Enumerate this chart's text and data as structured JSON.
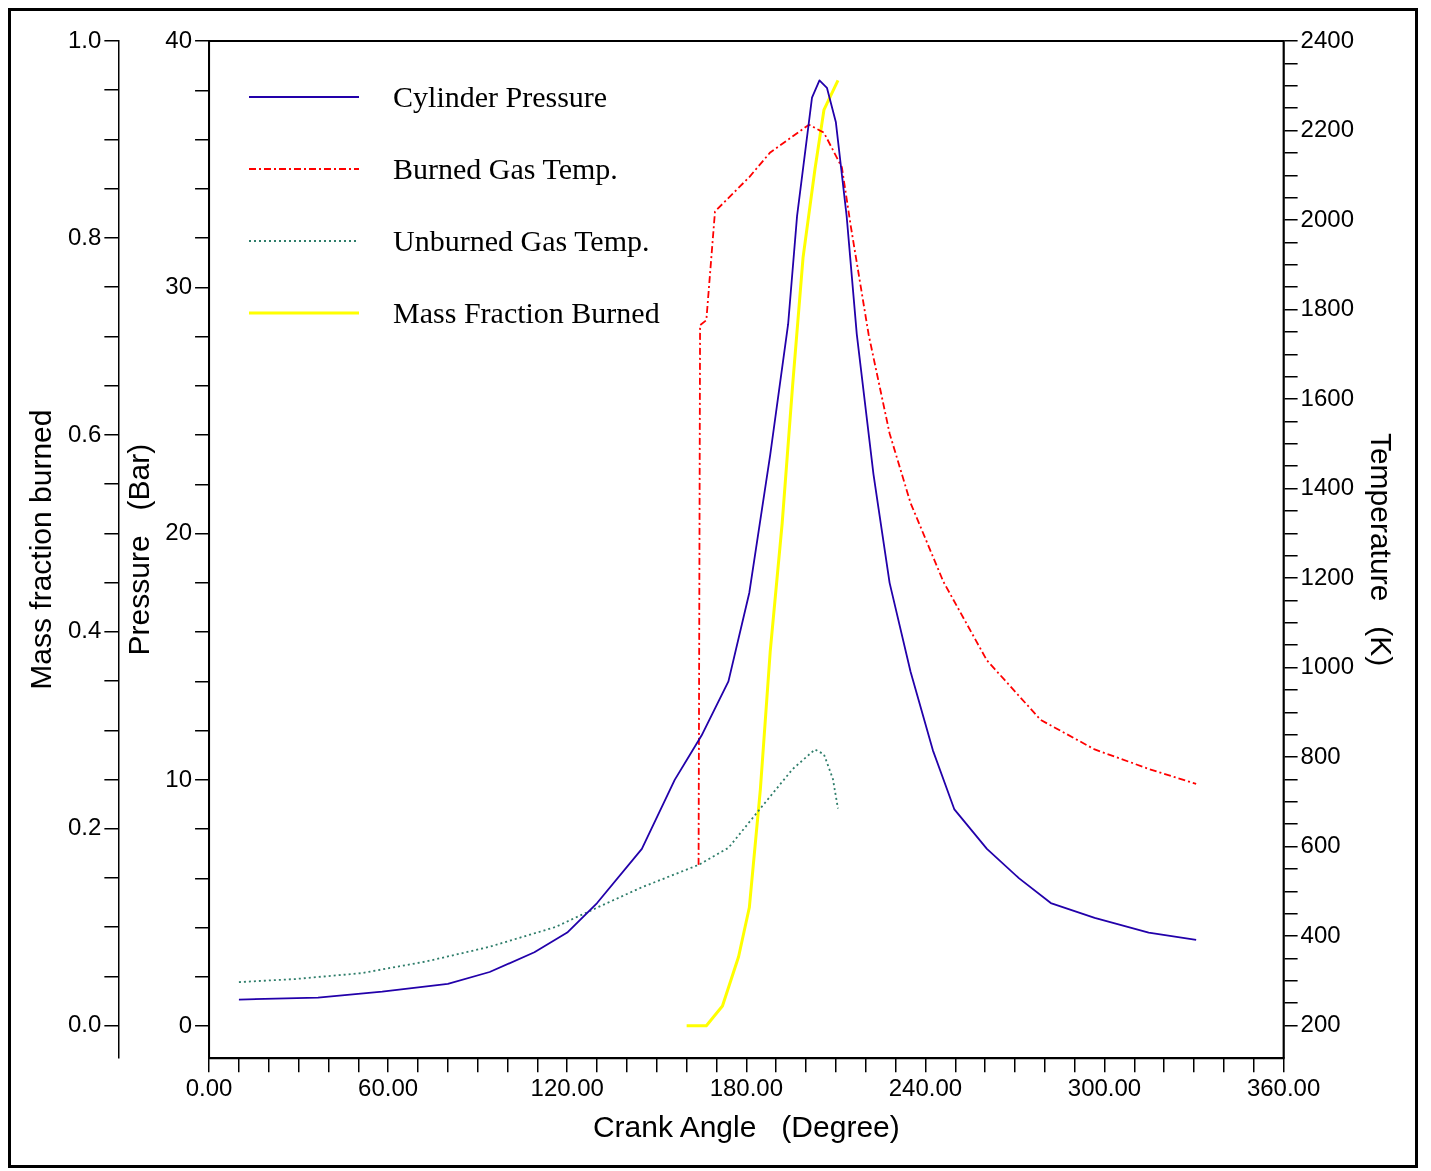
{
  "chart_data": {
    "type": "line",
    "xlabel": "Crank Angle   (Degree)",
    "ylabel": "Pressure   (Bar)",
    "y2label": "Temperature   (K)",
    "y3label": "Mass fraction burned",
    "xlim": [
      0,
      360
    ],
    "xticks": [
      {
        "value": 0,
        "label": "0.00"
      },
      {
        "value": 10,
        "label": null
      },
      {
        "value": 20,
        "label": null
      },
      {
        "value": 30,
        "label": null
      },
      {
        "value": 40,
        "label": null
      },
      {
        "value": 50,
        "label": null
      },
      {
        "value": 60,
        "label": "60.00"
      },
      {
        "value": 70,
        "label": null
      },
      {
        "value": 80,
        "label": null
      },
      {
        "value": 90,
        "label": null
      },
      {
        "value": 100,
        "label": null
      },
      {
        "value": 110,
        "label": null
      },
      {
        "value": 120,
        "label": "120.00"
      },
      {
        "value": 130,
        "label": null
      },
      {
        "value": 140,
        "label": null
      },
      {
        "value": 150,
        "label": null
      },
      {
        "value": 160,
        "label": null
      },
      {
        "value": 170,
        "label": null
      },
      {
        "value": 180,
        "label": "180.00"
      },
      {
        "value": 190,
        "label": null
      },
      {
        "value": 200,
        "label": null
      },
      {
        "value": 210,
        "label": null
      },
      {
        "value": 220,
        "label": null
      },
      {
        "value": 230,
        "label": null
      },
      {
        "value": 240,
        "label": "240.00"
      },
      {
        "value": 250,
        "label": null
      },
      {
        "value": 260,
        "label": null
      },
      {
        "value": 270,
        "label": null
      },
      {
        "value": 280,
        "label": null
      },
      {
        "value": 290,
        "label": null
      },
      {
        "value": 300,
        "label": "300.00"
      },
      {
        "value": 310,
        "label": null
      },
      {
        "value": 320,
        "label": null
      },
      {
        "value": 330,
        "label": null
      },
      {
        "value": 340,
        "label": null
      },
      {
        "value": 350,
        "label": null
      },
      {
        "value": 360,
        "label": "360.00"
      }
    ],
    "ylim": [
      -1.3,
      40
    ],
    "yticks": [
      0,
      {
        "value": 2,
        "label": null
      },
      {
        "value": 4,
        "label": null
      },
      {
        "value": 6,
        "label": null
      },
      {
        "value": 8,
        "label": null
      },
      10,
      {
        "value": 12,
        "label": null
      },
      {
        "value": 14,
        "label": null
      },
      {
        "value": 16,
        "label": null
      },
      {
        "value": 18,
        "label": null
      },
      20,
      {
        "value": 22,
        "label": null
      },
      {
        "value": 24,
        "label": null
      },
      {
        "value": 26,
        "label": null
      },
      {
        "value": 28,
        "label": null
      },
      30,
      {
        "value": 32,
        "label": null
      },
      {
        "value": 34,
        "label": null
      },
      {
        "value": 36,
        "label": null
      },
      {
        "value": 38,
        "label": null
      },
      40
    ],
    "y2lim": [
      127,
      2400
    ],
    "y2ticks": [
      200,
      {
        "value": 250,
        "label": null
      },
      {
        "value": 300,
        "label": null
      },
      {
        "value": 350,
        "label": null
      },
      400,
      {
        "value": 450,
        "label": null
      },
      {
        "value": 500,
        "label": null
      },
      {
        "value": 550,
        "label": null
      },
      600,
      {
        "value": 650,
        "label": null
      },
      {
        "value": 700,
        "label": null
      },
      {
        "value": 750,
        "label": null
      },
      800,
      {
        "value": 850,
        "label": null
      },
      {
        "value": 900,
        "label": null
      },
      {
        "value": 950,
        "label": null
      },
      1000,
      {
        "value": 1050,
        "label": null
      },
      {
        "value": 1100,
        "label": null
      },
      {
        "value": 1150,
        "label": null
      },
      1200,
      {
        "value": 1250,
        "label": null
      },
      {
        "value": 1300,
        "label": null
      },
      {
        "value": 1350,
        "label": null
      },
      1400,
      {
        "value": 1450,
        "label": null
      },
      {
        "value": 1500,
        "label": null
      },
      {
        "value": 1550,
        "label": null
      },
      1600,
      {
        "value": 1650,
        "label": null
      },
      {
        "value": 1700,
        "label": null
      },
      {
        "value": 1750,
        "label": null
      },
      1800,
      {
        "value": 1850,
        "label": null
      },
      {
        "value": 1900,
        "label": null
      },
      {
        "value": 1950,
        "label": null
      },
      2000,
      {
        "value": 2050,
        "label": null
      },
      {
        "value": 2100,
        "label": null
      },
      {
        "value": 2150,
        "label": null
      },
      2200,
      {
        "value": 2250,
        "label": null
      },
      {
        "value": 2300,
        "label": null
      },
      {
        "value": 2350,
        "label": null
      },
      2400
    ],
    "y3lim": [
      -0.033,
      1.0
    ],
    "y3ticks": [
      {
        "value": 0,
        "label": "0.0"
      },
      {
        "value": 0.05,
        "label": null
      },
      {
        "value": 0.1,
        "label": null
      },
      {
        "value": 0.15,
        "label": null
      },
      {
        "value": 0.2,
        "label": "0.2"
      },
      {
        "value": 0.25,
        "label": null
      },
      {
        "value": 0.3,
        "label": null
      },
      {
        "value": 0.35,
        "label": null
      },
      {
        "value": 0.4,
        "label": "0.4"
      },
      {
        "value": 0.45,
        "label": null
      },
      {
        "value": 0.5,
        "label": null
      },
      {
        "value": 0.55,
        "label": null
      },
      {
        "value": 0.6,
        "label": "0.6"
      },
      {
        "value": 0.65,
        "label": null
      },
      {
        "value": 0.7,
        "label": null
      },
      {
        "value": 0.75,
        "label": null
      },
      {
        "value": 0.8,
        "label": "0.8"
      },
      {
        "value": 0.85,
        "label": null
      },
      {
        "value": 0.9,
        "label": null
      },
      {
        "value": 0.95,
        "label": null
      },
      {
        "value": 1.0,
        "label": "1.0"
      }
    ],
    "grid": false,
    "legend": "top left",
    "marker": "none",
    "series": [
      {
        "name": "Cylinder Pressure",
        "color": "#2200aa",
        "line_style": "solid",
        "x": [
          10,
          36.5,
          58,
          80,
          94,
          109,
          120,
          130,
          145,
          156,
          165,
          174,
          181,
          188,
          194,
          197,
          202,
          204.5,
          207,
          210,
          213.6,
          217,
          222.6,
          228,
          235,
          242.5,
          249.7,
          260.6,
          271.4,
          282,
          296.7,
          314.8,
          330.7
        ],
        "values": [
          1.08,
          1.16,
          1.4,
          1.72,
          2.2,
          3.0,
          3.8,
          5.0,
          7.2,
          10.0,
          11.8,
          14.0,
          17.6,
          23.2,
          28.5,
          32.9,
          37.7,
          38.4,
          38.1,
          36.7,
          32.9,
          28.1,
          22.4,
          18.0,
          14.4,
          11.2,
          8.8,
          7.2,
          6.0,
          5.0,
          4.4,
          3.8,
          3.5
        ]
      },
      {
        "name": "Burned Gas Temp.",
        "color": "#ff0000",
        "line_style": "dashdot",
        "axis": "y2",
        "x": [
          164,
          164.5,
          166.6,
          169.5,
          181,
          188,
          201,
          206,
          212,
          215,
          221,
          228,
          235,
          246,
          260.6,
          278.6,
          296.7,
          315,
          330.7
        ],
        "values": [
          559,
          1765,
          1776,
          2019,
          2096,
          2151,
          2213,
          2195,
          2118,
          1986,
          1743,
          1523,
          1368,
          1192,
          1016,
          883,
          817,
          773,
          740
        ]
      },
      {
        "name": "Unburned Gas Temp.",
        "color": "#2e7d6a",
        "line_style": "dotted",
        "axis": "y2",
        "x": [
          10,
          29,
          51,
          72.6,
          94,
          116,
          130.5,
          145,
          164,
          174,
          184.7,
          195.5,
          203,
          206,
          209,
          210.7
        ],
        "values": [
          297,
          304,
          317,
          343,
          376,
          420,
          465,
          509,
          559,
          597,
          685,
          773,
          817,
          806,
          751,
          685
        ]
      },
      {
        "name": "Mass Fraction Burned",
        "color": "#ffff00",
        "line_style": "solid",
        "axis": "y3",
        "x": [
          160,
          166.6,
          172,
          177.4,
          181,
          184.7,
          188,
          192,
          195.5,
          199,
          203,
          206,
          210.7
        ],
        "values": [
          0.0,
          0.0,
          0.02,
          0.07,
          0.12,
          0.24,
          0.38,
          0.51,
          0.65,
          0.78,
          0.87,
          0.93,
          0.96
        ]
      }
    ]
  }
}
